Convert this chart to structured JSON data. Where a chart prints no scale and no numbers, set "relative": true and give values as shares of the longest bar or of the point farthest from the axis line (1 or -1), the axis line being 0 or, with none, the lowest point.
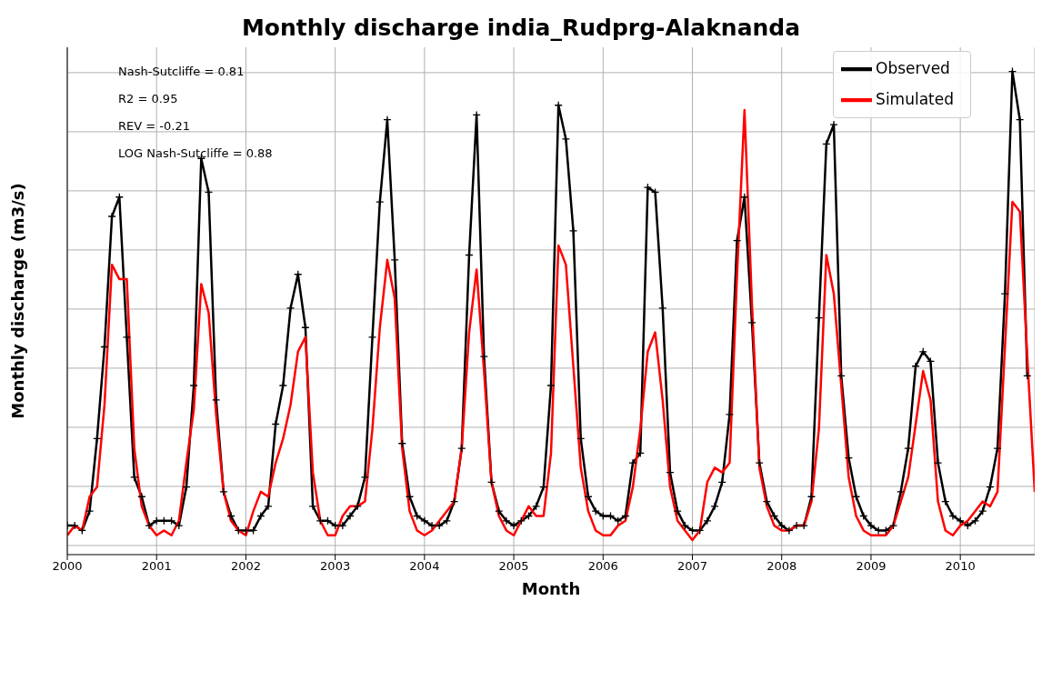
{
  "chart_data": {
    "type": "line",
    "title": "Monthly discharge india_Rudprg-Alaknanda",
    "xlabel": "Month",
    "ylabel": "Monthly discharge (m3/s)",
    "annotations": [
      "Nash-Sutcliffe = 0.81",
      "R2 = 0.95",
      "REV = -0.21",
      "LOG Nash-Sutcliffe = 0.88"
    ],
    "relative": true,
    "grid": true,
    "legend": "top right",
    "xlim": [
      "2000-01",
      "2010-11"
    ],
    "xticks": [
      "2000",
      "2001",
      "2002",
      "2003",
      "2004",
      "2005",
      "2006",
      "2007",
      "2008",
      "2009",
      "2010"
    ],
    "x": [
      "2000-01",
      "2000-02",
      "2000-03",
      "2000-04",
      "2000-05",
      "2000-06",
      "2000-07",
      "2000-08",
      "2000-09",
      "2000-10",
      "2000-11",
      "2000-12",
      "2001-01",
      "2001-02",
      "2001-03",
      "2001-04",
      "2001-05",
      "2001-06",
      "2001-07",
      "2001-08",
      "2001-09",
      "2001-10",
      "2001-11",
      "2001-12",
      "2002-01",
      "2002-02",
      "2002-03",
      "2002-04",
      "2002-05",
      "2002-06",
      "2002-07",
      "2002-08",
      "2002-09",
      "2002-10",
      "2002-11",
      "2002-12",
      "2003-01",
      "2003-02",
      "2003-03",
      "2003-04",
      "2003-05",
      "2003-06",
      "2003-07",
      "2003-08",
      "2003-09",
      "2003-10",
      "2003-11",
      "2003-12",
      "2004-01",
      "2004-02",
      "2004-03",
      "2004-04",
      "2004-05",
      "2004-06",
      "2004-07",
      "2004-08",
      "2004-09",
      "2004-10",
      "2004-11",
      "2004-12",
      "2005-01",
      "2005-02",
      "2005-03",
      "2005-04",
      "2005-05",
      "2005-06",
      "2005-07",
      "2005-08",
      "2005-09",
      "2005-10",
      "2005-11",
      "2005-12",
      "2006-01",
      "2006-02",
      "2006-03",
      "2006-04",
      "2006-05",
      "2006-06",
      "2006-07",
      "2006-08",
      "2006-09",
      "2006-10",
      "2006-11",
      "2006-12",
      "2007-01",
      "2007-02",
      "2007-03",
      "2007-04",
      "2007-05",
      "2007-06",
      "2007-07",
      "2007-08",
      "2007-09",
      "2007-10",
      "2007-11",
      "2007-12",
      "2008-01",
      "2008-02",
      "2008-03",
      "2008-04",
      "2008-05",
      "2008-06",
      "2008-07",
      "2008-08",
      "2008-09",
      "2008-10",
      "2008-11",
      "2008-12",
      "2009-01",
      "2009-02",
      "2009-03",
      "2009-04",
      "2009-05",
      "2009-06",
      "2009-07",
      "2009-08",
      "2009-09",
      "2009-10",
      "2009-11",
      "2009-12",
      "2010-01",
      "2010-02",
      "2010-03",
      "2010-04",
      "2010-05",
      "2010-06",
      "2010-07",
      "2010-08",
      "2010-09",
      "2010-10",
      "2010-11"
    ],
    "series": [
      {
        "name": "Observed",
        "color": "#000000",
        "marker": "cross",
        "values": [
          0.06,
          0.06,
          0.05,
          0.09,
          0.24,
          0.43,
          0.7,
          0.74,
          0.45,
          0.16,
          0.12,
          0.06,
          0.07,
          0.07,
          0.07,
          0.06,
          0.14,
          0.35,
          0.82,
          0.75,
          0.32,
          0.13,
          0.08,
          0.05,
          0.05,
          0.05,
          0.08,
          0.1,
          0.27,
          0.35,
          0.51,
          0.58,
          0.47,
          0.1,
          0.07,
          0.07,
          0.06,
          0.06,
          0.08,
          0.1,
          0.16,
          0.45,
          0.73,
          0.9,
          0.61,
          0.23,
          0.12,
          0.08,
          0.07,
          0.06,
          0.06,
          0.07,
          0.11,
          0.22,
          0.62,
          0.91,
          0.41,
          0.15,
          0.09,
          0.07,
          0.06,
          0.07,
          0.08,
          0.1,
          0.14,
          0.35,
          0.93,
          0.86,
          0.67,
          0.24,
          0.12,
          0.09,
          0.08,
          0.08,
          0.07,
          0.08,
          0.19,
          0.21,
          0.76,
          0.75,
          0.51,
          0.17,
          0.09,
          0.06,
          0.05,
          0.05,
          0.07,
          0.1,
          0.15,
          0.29,
          0.65,
          0.74,
          0.48,
          0.19,
          0.11,
          0.08,
          0.06,
          0.05,
          0.06,
          0.06,
          0.12,
          0.49,
          0.85,
          0.89,
          0.37,
          0.2,
          0.12,
          0.08,
          0.06,
          0.05,
          0.05,
          0.06,
          0.13,
          0.22,
          0.39,
          0.42,
          0.4,
          0.19,
          0.11,
          0.08,
          0.07,
          0.06,
          0.07,
          0.09,
          0.14,
          0.22,
          0.54,
          1,
          0.9,
          0.37,
          null
        ]
      },
      {
        "name": "Simulated",
        "color": "#ff0000",
        "values": [
          0.04,
          0.06,
          0.05,
          0.12,
          0.14,
          0.31,
          0.6,
          0.57,
          0.57,
          0.22,
          0.1,
          0.06,
          0.04,
          0.05,
          0.04,
          0.07,
          0.19,
          0.3,
          0.56,
          0.5,
          0.29,
          0.13,
          0.07,
          0.05,
          0.04,
          0.09,
          0.13,
          0.12,
          0.19,
          0.24,
          0.31,
          0.42,
          0.45,
          0.17,
          0.07,
          0.04,
          0.04,
          0.08,
          0.1,
          0.1,
          0.11,
          0.26,
          0.47,
          0.61,
          0.53,
          0.22,
          0.09,
          0.05,
          0.04,
          0.05,
          0.07,
          0.09,
          0.11,
          0.22,
          0.46,
          0.59,
          0.38,
          0.15,
          0.08,
          0.05,
          0.04,
          0.07,
          0.1,
          0.08,
          0.08,
          0.21,
          0.64,
          0.6,
          0.39,
          0.18,
          0.09,
          0.05,
          0.04,
          0.04,
          0.06,
          0.07,
          0.14,
          0.26,
          0.42,
          0.46,
          0.32,
          0.14,
          0.07,
          0.05,
          0.03,
          0.05,
          0.15,
          0.18,
          0.17,
          0.19,
          0.58,
          0.92,
          0.52,
          0.18,
          0.1,
          0.06,
          0.05,
          0.05,
          0.06,
          0.06,
          0.11,
          0.26,
          0.62,
          0.54,
          0.35,
          0.16,
          0.08,
          0.05,
          0.04,
          0.04,
          0.04,
          0.06,
          0.11,
          0.16,
          0.27,
          0.38,
          0.32,
          0.11,
          0.05,
          0.04,
          0.06,
          0.07,
          0.09,
          0.11,
          0.1,
          0.13,
          0.43,
          0.73,
          0.71,
          0.41,
          0.13
        ]
      }
    ]
  }
}
